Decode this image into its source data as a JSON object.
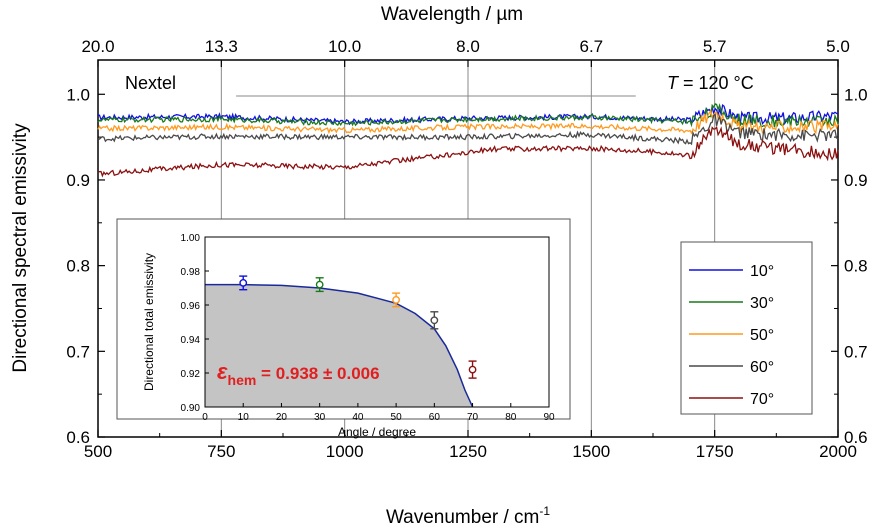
{
  "chart_data": {
    "type": "line",
    "xlabel_bottom": "Wavenumber / cm",
    "xlabel_bottom_sup": "-1",
    "xlabel_top": "Wavelength / µm",
    "ylabel": "Directional spectral emissivity",
    "xlim": [
      500,
      2000
    ],
    "ylim": [
      0.6,
      1.04
    ],
    "x_ticks": [
      "500",
      "750",
      "1000",
      "1250",
      "1500",
      "1750",
      "2000"
    ],
    "y_ticks": [
      "0.6",
      "0.7",
      "0.8",
      "0.9",
      "1.0"
    ],
    "top_ticks": [
      {
        "label": "20.0",
        "wavenumber": 500
      },
      {
        "label": "13.3",
        "wavenumber": 750
      },
      {
        "label": "10.0",
        "wavenumber": 1000
      },
      {
        "label": "8.0",
        "wavenumber": 1250
      },
      {
        "label": "6.7",
        "wavenumber": 1500
      },
      {
        "label": "5.7",
        "wavenumber": 1750
      },
      {
        "label": "5.0",
        "wavenumber": 2000
      }
    ],
    "annotations": {
      "material": "Nextel",
      "temperature_symbol": "T",
      "temperature_value": " = 120 °C"
    },
    "legend_position": "right",
    "series": [
      {
        "name": "10°",
        "color": "#1010e0",
        "base": 0.973,
        "noise": 0.003,
        "points": [
          [
            500,
            0.973
          ],
          [
            750,
            0.974
          ],
          [
            1000,
            0.968
          ],
          [
            1250,
            0.972
          ],
          [
            1500,
            0.974
          ],
          [
            1700,
            0.97
          ],
          [
            1750,
            0.985
          ],
          [
            1800,
            0.972
          ],
          [
            1900,
            0.972
          ],
          [
            2000,
            0.975
          ]
        ]
      },
      {
        "name": "30°",
        "color": "#1a7a1a",
        "base": 0.97,
        "noise": 0.003,
        "points": [
          [
            500,
            0.97
          ],
          [
            750,
            0.971
          ],
          [
            1000,
            0.966
          ],
          [
            1250,
            0.971
          ],
          [
            1500,
            0.973
          ],
          [
            1700,
            0.968
          ],
          [
            1750,
            0.983
          ],
          [
            1800,
            0.97
          ],
          [
            1900,
            0.968
          ],
          [
            2000,
            0.97
          ]
        ]
      },
      {
        "name": "50°",
        "color": "#ff9a20",
        "base": 0.962,
        "noise": 0.003,
        "points": [
          [
            500,
            0.96
          ],
          [
            750,
            0.962
          ],
          [
            1000,
            0.958
          ],
          [
            1250,
            0.962
          ],
          [
            1500,
            0.963
          ],
          [
            1700,
            0.958
          ],
          [
            1750,
            0.98
          ],
          [
            1800,
            0.962
          ],
          [
            1900,
            0.962
          ],
          [
            2000,
            0.962
          ]
        ]
      },
      {
        "name": "60°",
        "color": "#4a4a4a",
        "base": 0.95,
        "noise": 0.003,
        "points": [
          [
            500,
            0.948
          ],
          [
            750,
            0.951
          ],
          [
            1000,
            0.95
          ],
          [
            1250,
            0.95
          ],
          [
            1500,
            0.953
          ],
          [
            1700,
            0.945
          ],
          [
            1750,
            0.97
          ],
          [
            1800,
            0.955
          ],
          [
            1900,
            0.952
          ],
          [
            2000,
            0.952
          ]
        ]
      },
      {
        "name": "70°",
        "color": "#8b1010",
        "base": 0.918,
        "noise": 0.003,
        "points": [
          [
            500,
            0.907
          ],
          [
            750,
            0.918
          ],
          [
            1000,
            0.915
          ],
          [
            1250,
            0.932
          ],
          [
            1300,
            0.936
          ],
          [
            1500,
            0.937
          ],
          [
            1650,
            0.932
          ],
          [
            1700,
            0.928
          ],
          [
            1750,
            0.96
          ],
          [
            1800,
            0.942
          ],
          [
            1900,
            0.935
          ],
          [
            2000,
            0.93
          ]
        ]
      }
    ],
    "inset": {
      "xlabel": "Angle / degree",
      "ylabel": "Directional total emissivity",
      "xlim": [
        0,
        90
      ],
      "ylim": [
        0.9,
        1.0
      ],
      "x_ticks": [
        "0",
        "10",
        "20",
        "30",
        "40",
        "50",
        "60",
        "70",
        "80",
        "90"
      ],
      "y_ticks": [
        "0.90",
        "0.92",
        "0.94",
        "0.96",
        "0.98",
        "1.00"
      ],
      "points": [
        {
          "angle": 10,
          "value": 0.973,
          "err": 0.004,
          "color": "#1010e0"
        },
        {
          "angle": 30,
          "value": 0.972,
          "err": 0.004,
          "color": "#1a7a1a"
        },
        {
          "angle": 50,
          "value": 0.963,
          "err": 0.004,
          "color": "#ff9a20"
        },
        {
          "angle": 60,
          "value": 0.951,
          "err": 0.005,
          "color": "#4a4a4a"
        },
        {
          "angle": 70,
          "value": 0.922,
          "err": 0.005,
          "color": "#8b1010"
        }
      ],
      "fit_curve": [
        [
          0,
          0.972
        ],
        [
          10,
          0.972
        ],
        [
          20,
          0.9715
        ],
        [
          30,
          0.97
        ],
        [
          40,
          0.967
        ],
        [
          50,
          0.961
        ],
        [
          55,
          0.955
        ],
        [
          60,
          0.946
        ],
        [
          63,
          0.936
        ],
        [
          66,
          0.922
        ],
        [
          68,
          0.91
        ],
        [
          70,
          0.898
        ]
      ],
      "hem_symbol": "ε",
      "hem_sub": "hem",
      "hem_value": " = 0.938 ± 0.006"
    }
  }
}
